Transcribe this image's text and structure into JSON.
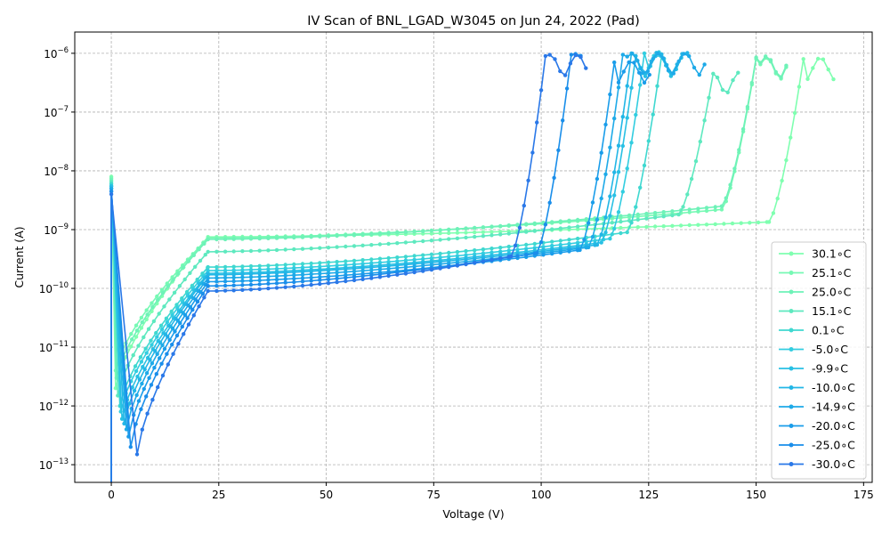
{
  "chart_data": {
    "type": "line",
    "title": "IV Scan of BNL_LGAD_W3045 on Jun 24, 2022 (Pad)",
    "xlabel": "Voltage (V)",
    "ylabel": "Current (A)",
    "xlim": [
      -8.5,
      177
    ],
    "ylim": [
      5e-14,
      2.3e-06
    ],
    "yscale": "log",
    "grid": true,
    "legend_position": "center-right",
    "x_ticks": [
      {
        "value": 0,
        "label": "0"
      },
      {
        "value": 25,
        "label": "25"
      },
      {
        "value": 50,
        "label": "50"
      },
      {
        "value": 75,
        "label": "75"
      },
      {
        "value": 100,
        "label": "100"
      },
      {
        "value": 125,
        "label": "125"
      },
      {
        "value": 150,
        "label": "150"
      },
      {
        "value": 175,
        "label": "175"
      }
    ],
    "y_ticks": [
      {
        "value": 1e-13,
        "base": "10",
        "exp": "−13"
      },
      {
        "value": 1e-12,
        "base": "10",
        "exp": "−12"
      },
      {
        "value": 1e-11,
        "base": "10",
        "exp": "−11"
      },
      {
        "value": 1e-10,
        "base": "10",
        "exp": "−10"
      },
      {
        "value": 1e-09,
        "base": "10",
        "exp": "−9"
      },
      {
        "value": 1e-08,
        "base": "10",
        "exp": "−8"
      },
      {
        "value": 1e-07,
        "base": "10",
        "exp": "−7"
      },
      {
        "value": 1e-06,
        "base": "10",
        "exp": "−6"
      }
    ],
    "series": [
      {
        "name": "30.1$^\\circ$C",
        "label": "30.1∘C",
        "color": "#7fffb0",
        "pre": 8e-09,
        "min_x": 1.0,
        "min_i": 2e-12,
        "knee_i": 7.5e-10,
        "plateau_end": 1.35e-09,
        "bd_v": 161,
        "bd_i": 8e-07,
        "end_v": 168
      },
      {
        "name": "25.1$^\\circ$C",
        "label": "25.1∘C",
        "color": "#76f9b4",
        "pre": 7.5e-09,
        "min_x": 1.0,
        "min_i": 4e-12,
        "knee_i": 7.2e-10,
        "plateau_end": 2.2e-09,
        "bd_v": 150,
        "bd_i": 8e-07,
        "end_v": 158
      },
      {
        "name": "25.0$^\\circ$C",
        "label": "25.0∘C",
        "color": "#6ef2b8",
        "pre": 7e-09,
        "min_x": 1.2,
        "min_i": 3e-12,
        "knee_i": 6.8e-10,
        "plateau_end": 2.5e-09,
        "bd_v": 150,
        "bd_i": 8.5e-07,
        "end_v": 158
      },
      {
        "name": "15.1$^\\circ$C",
        "label": "15.1∘C",
        "color": "#5ee9bf",
        "pre": 6.5e-09,
        "min_x": 1.5,
        "min_i": 1.5e-12,
        "knee_i": 4.2e-10,
        "plateau_end": 1.8e-09,
        "bd_v": 140,
        "bd_i": 4.5e-07,
        "end_v": 146
      },
      {
        "name": "0.1$^\\circ$C",
        "label": "0.1∘C",
        "color": "#3fd8d0",
        "pre": 6e-09,
        "min_x": 2.0,
        "min_i": 1e-12,
        "knee_i": 2.3e-10,
        "plateau_end": 9e-10,
        "bd_v": 128,
        "bd_i": 9e-07,
        "end_v": 133
      },
      {
        "name": "-5.0$^\\circ$C",
        "label": "-5.0∘C",
        "color": "#32cde0",
        "pre": 5.5e-09,
        "min_x": 2.2,
        "min_i": 8e-13,
        "knee_i": 2e-10,
        "plateau_end": 7e-10,
        "bd_v": 124,
        "bd_i": 1e-06,
        "end_v": 130
      },
      {
        "name": "-9.9$^\\circ$C",
        "label": "-9.9∘C",
        "color": "#28c0e4",
        "pre": 5.5e-09,
        "min_x": 2.5,
        "min_i": 6e-13,
        "knee_i": 1.8e-10,
        "plateau_end": 6e-10,
        "bd_v": 122,
        "bd_i": 9e-07,
        "end_v": 133
      },
      {
        "name": "-10.0$^\\circ$C",
        "label": "-10.0∘C",
        "color": "#22b6e6",
        "pre": 5e-09,
        "min_x": 3.0,
        "min_i": 5e-13,
        "knee_i": 1.7e-10,
        "plateau_end": 5.5e-10,
        "bd_v": 121,
        "bd_i": 1e-06,
        "end_v": 134
      },
      {
        "name": "-14.9$^\\circ$C",
        "label": "-14.9∘C",
        "color": "#1eaae8",
        "pre": 5e-09,
        "min_x": 3.5,
        "min_i": 4e-13,
        "knee_i": 1.5e-10,
        "plateau_end": 5e-10,
        "bd_v": 119,
        "bd_i": 9.5e-07,
        "end_v": 139
      },
      {
        "name": "-20.0$^\\circ$C",
        "label": "-20.0∘C",
        "color": "#1a9dea",
        "pre": 4.5e-09,
        "min_x": 4.0,
        "min_i": 3e-13,
        "knee_i": 1.3e-10,
        "plateau_end": 4.5e-10,
        "bd_v": 117,
        "bd_i": 7e-07,
        "end_v": 126
      },
      {
        "name": "-25.0$^\\circ$C",
        "label": "-25.0∘C",
        "color": "#1a8eea",
        "pre": 4.5e-09,
        "min_x": 4.5,
        "min_i": 2e-13,
        "knee_i": 1.1e-10,
        "plateau_end": 4e-10,
        "bd_v": 107,
        "bd_i": 9.5e-07,
        "end_v": 110
      },
      {
        "name": "-30.0$^\\circ$C",
        "label": "-30.0∘C",
        "color": "#2a78e8",
        "pre": 4e-09,
        "min_x": 6.0,
        "min_i": 1.5e-13,
        "knee_i": 9e-11,
        "plateau_end": 3.5e-10,
        "bd_v": 101,
        "bd_i": 9e-07,
        "end_v": 111
      }
    ]
  }
}
